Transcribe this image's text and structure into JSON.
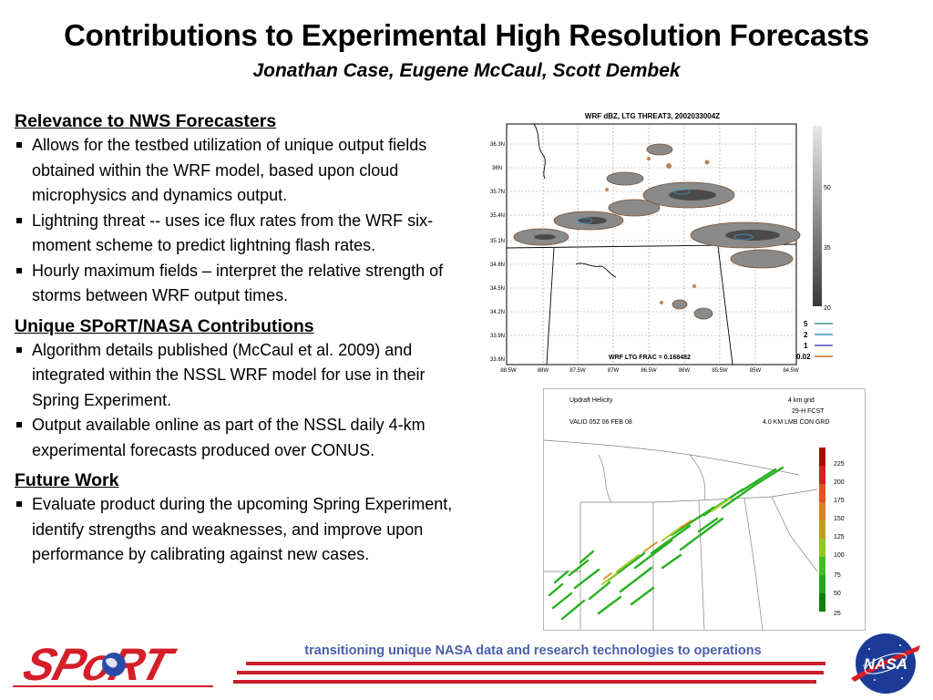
{
  "header": {
    "title": "Contributions to Experimental High Resolution Forecasts",
    "authors": "Jonathan Case, Eugene McCaul, Scott Dembek"
  },
  "sections": [
    {
      "heading": "Relevance to NWS Forecasters",
      "bullets": [
        "Allows for the testbed utilization of unique output fields obtained within the WRF model, based upon cloud microphysics and dynamics output.",
        "Lightning threat -- uses ice flux rates from the WRF six-moment scheme to predict lightning flash rates.",
        "Hourly maximum fields – interpret the relative strength of storms between WRF output times."
      ]
    },
    {
      "heading": "Unique SPoRT/NASA Contributions",
      "bullets": [
        "Algorithm details published (McCaul et al. 2009) and integrated within the NSSL WRF model for use in their Spring Experiment.",
        "Output available online as part of the NSSL daily 4-km experimental forecasts produced over CONUS."
      ]
    },
    {
      "heading": "Future Work",
      "bullets": [
        "Evaluate product during the upcoming Spring Experiment, identify strengths and weaknesses, and improve upon performance by calibrating against new cases."
      ]
    }
  ],
  "figure1": {
    "title": "WRF dBZ, LTG THREAT3, 2002033004Z",
    "frac_label": "WRF LTG FRAC = 0.168482",
    "lat_labels": [
      "36.3N",
      "36N",
      "35.7N",
      "35.4N",
      "35.1N",
      "34.8N",
      "34.5N",
      "34.2N",
      "33.9N",
      "33.6N"
    ],
    "lon_labels": [
      "88.5W",
      "88W",
      "87.5W",
      "87W",
      "86.5W",
      "86W",
      "85.5W",
      "85W",
      "84.5W"
    ],
    "colorbar_labels": [
      "50",
      "35",
      "20"
    ],
    "contour_legend": [
      "5",
      "2",
      "1",
      "0.02"
    ],
    "contour_colors": [
      "#4a9a8a",
      "#3a9ad0",
      "#5050c0",
      "#c07030"
    ]
  },
  "figure2": {
    "title": "Updraft Helicity",
    "grid": "4 km grid",
    "valid": "VALID 05Z 06 FEB 08",
    "fcst": "29-H     FCST",
    "model": "4.0 KM LMB CON GRD",
    "scale_labels": [
      "225",
      "200",
      "175",
      "150",
      "125",
      "100",
      "75",
      "50",
      "25"
    ],
    "scale_colors": [
      "#b00000",
      "#d82020",
      "#e85020",
      "#e08020",
      "#c0a020",
      "#90c820",
      "#40c020",
      "#20a820",
      "#108010"
    ]
  },
  "footer": {
    "tagline": "transitioning unique NASA data and research technologies to operations",
    "sport_logo": "SPoRT",
    "nasa_logo": "NASA"
  }
}
